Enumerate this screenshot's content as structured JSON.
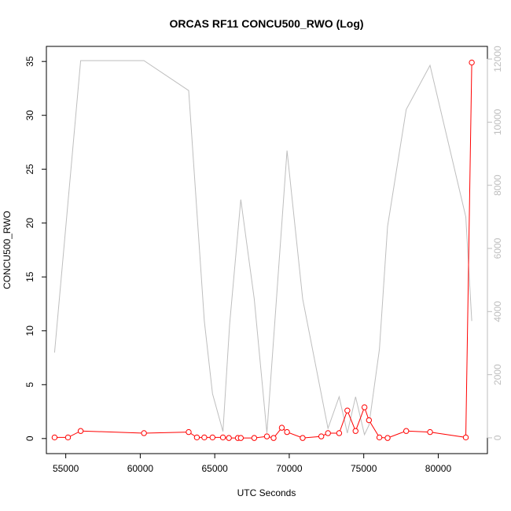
{
  "chart_data": {
    "type": "line",
    "title": "ORCAS RF11 CONCU500_RWO (Log)",
    "xlabel": "UTC Seconds",
    "ylabel": "CONCU500_RWO",
    "xlim": [
      53700,
      83300
    ],
    "ylim": [
      -1.4,
      36.4
    ],
    "y2lim": [
      -500,
      12400
    ],
    "x_ticks": [
      55000,
      60000,
      65000,
      70000,
      75000,
      80000
    ],
    "y_ticks": [
      0,
      5,
      10,
      15,
      20,
      25,
      30,
      35
    ],
    "y2_ticks": [
      0,
      2000,
      4000,
      6000,
      8000,
      10000,
      12000
    ],
    "grid": false,
    "colors": {
      "primary": "#ff0000",
      "secondary": "#bebebe"
    },
    "series": [
      {
        "axis": "left",
        "style": "line-points",
        "color": "#ff0000",
        "x": [
          54250,
          55150,
          56000,
          60250,
          63250,
          63800,
          64300,
          64850,
          65550,
          65950,
          66550,
          66750,
          67650,
          68500,
          68950,
          69500,
          69850,
          70900,
          72150,
          72600,
          73350,
          73900,
          74450,
          75050,
          75350,
          76050,
          76600,
          77850,
          79450,
          81850,
          82250
        ],
        "y": [
          0.1,
          0.1,
          0.7,
          0.5,
          0.6,
          0.1,
          0.1,
          0.1,
          0.1,
          0.05,
          0.05,
          0.05,
          0.05,
          0.2,
          0.05,
          1.0,
          0.6,
          0.05,
          0.2,
          0.5,
          0.5,
          2.6,
          0.7,
          2.9,
          1.7,
          0.1,
          0.05,
          0.7,
          0.6,
          0.1,
          34.9
        ]
      },
      {
        "axis": "right",
        "style": "line",
        "color": "#bebebe",
        "x": [
          54250,
          56000,
          60250,
          63250,
          64300,
          64850,
          65550,
          66000,
          66750,
          67650,
          68500,
          69850,
          70900,
          72600,
          73350,
          73900,
          74450,
          75050,
          75350,
          76050,
          76600,
          77850,
          79450,
          81850,
          82250
        ],
        "y": [
          2700,
          11950,
          11950,
          11000,
          3700,
          1400,
          200,
          3600,
          7550,
          4400,
          150,
          9100,
          4400,
          300,
          1300,
          150,
          1300,
          100,
          400,
          2800,
          6700,
          10400,
          11800,
          7000,
          3700
        ]
      }
    ]
  }
}
